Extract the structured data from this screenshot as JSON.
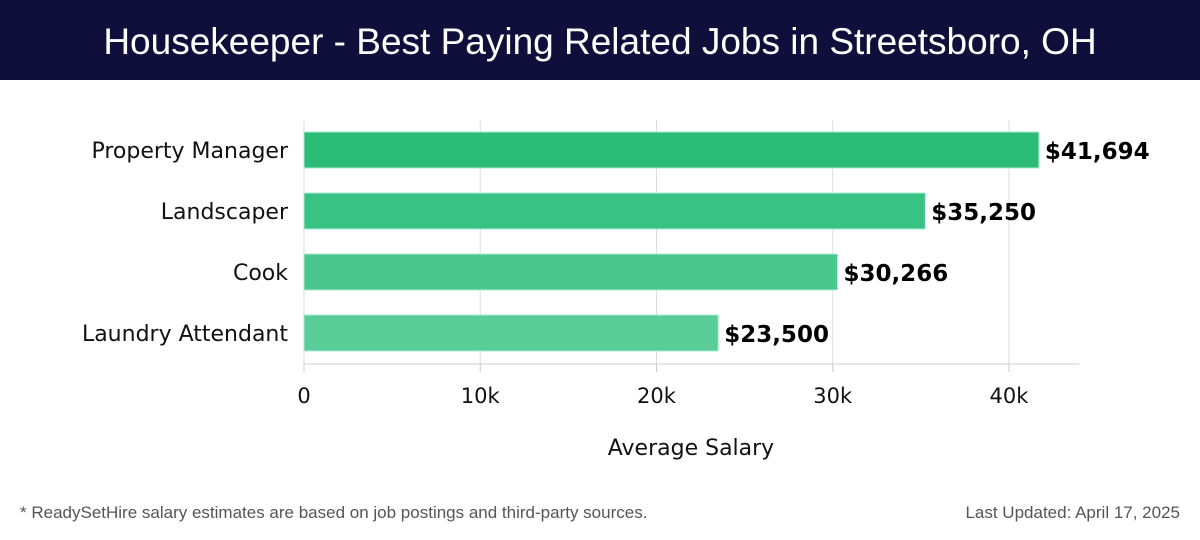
{
  "header": {
    "title": "Housekeeper - Best Paying Related Jobs in Streetsboro, OH"
  },
  "footer": {
    "note": "* ReadySetHire salary estimates are based on job postings and third-party sources.",
    "updated": "Last Updated: April 17, 2025"
  },
  "chart_data": {
    "type": "bar",
    "orientation": "horizontal",
    "categories": [
      "Property Manager",
      "Landscaper",
      "Cook",
      "Laundry Attendant"
    ],
    "values": [
      41694,
      35250,
      30266,
      23500
    ],
    "data_labels": [
      "$41,694",
      "$35,250",
      "$30,266",
      "$23,500"
    ],
    "colors": [
      "#2bbd77",
      "#38c283",
      "#4ac78d",
      "#59cc98"
    ],
    "xlabel": "Average Salary",
    "xlim": [
      0,
      44000
    ],
    "xticks": [
      0,
      10000,
      20000,
      30000,
      40000
    ],
    "xtick_labels": [
      "0",
      "10k",
      "20k",
      "30k",
      "40k"
    ],
    "grid": true
  }
}
